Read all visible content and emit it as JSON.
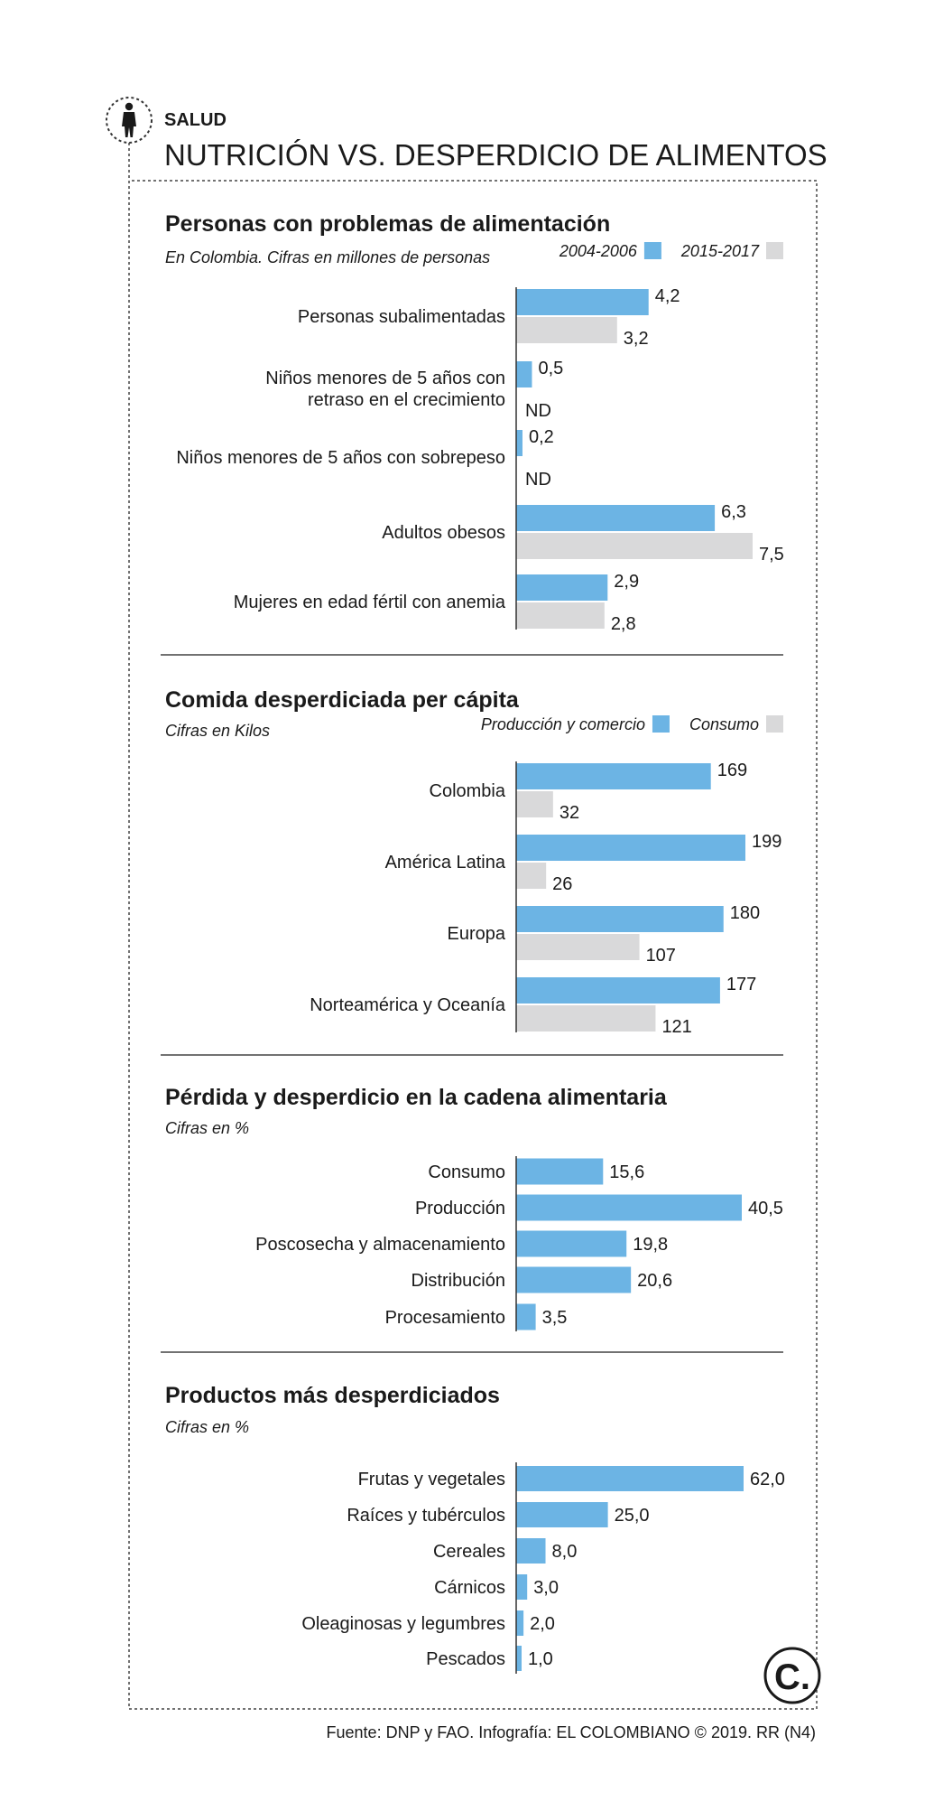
{
  "header": {
    "section": "SALUD",
    "title": "NUTRICIÓN VS. DESPERDICIO DE ALIMENTOS",
    "icon": "person-silhouette-icon"
  },
  "footer": {
    "source": "Fuente: DNP y FAO. Infografía: EL COLOMBIANO © 2019. RR (N4)",
    "logo_letter": "C."
  },
  "colors": {
    "blue": "#6cb4e4",
    "gray": "#d9d9da",
    "text": "#1a1a1a"
  },
  "chart_data": [
    {
      "type": "bar",
      "orientation": "horizontal",
      "title": "Personas con problemas de alimentación",
      "subtitle": "En Colombia. Cifras en millones de personas",
      "categories": [
        [
          "Personas subalimentadas"
        ],
        [
          "Niños menores de 5 años con",
          "retraso en el crecimiento"
        ],
        [
          "Niños menores de 5 años con sobrepeso"
        ],
        [
          "Adultos obesos"
        ],
        [
          "Mujeres en edad fértil con anemia"
        ]
      ],
      "series": [
        {
          "name": "2004-2006",
          "color": "#6cb4e4",
          "values": [
            4.2,
            0.5,
            0.2,
            6.3,
            2.9
          ],
          "labels": [
            "4,2",
            "0,5",
            "0,2",
            "6,3",
            "2,9"
          ]
        },
        {
          "name": "2015-2017",
          "color": "#d9d9da",
          "values": [
            3.2,
            null,
            null,
            7.5,
            2.8
          ],
          "labels": [
            "3,2",
            "ND",
            "ND",
            "7,5",
            "2,8"
          ]
        }
      ],
      "xlim": [
        0,
        7.5
      ]
    },
    {
      "type": "bar",
      "orientation": "horizontal",
      "title": "Comida desperdiciada per cápita",
      "subtitle": "Cifras en Kilos",
      "categories": [
        [
          "Colombia"
        ],
        [
          "América Latina"
        ],
        [
          "Europa"
        ],
        [
          "Norteamérica y Oceanía"
        ]
      ],
      "series": [
        {
          "name": "Producción y comercio",
          "color": "#6cb4e4",
          "values": [
            169,
            199,
            180,
            177
          ],
          "labels": [
            "169",
            "199",
            "180",
            "177"
          ]
        },
        {
          "name": "Consumo",
          "color": "#d9d9da",
          "values": [
            32,
            26,
            107,
            121
          ],
          "labels": [
            "32",
            "26",
            "107",
            "121"
          ]
        }
      ],
      "xlim": [
        0,
        199
      ]
    },
    {
      "type": "bar",
      "orientation": "horizontal",
      "title": "Pérdida y desperdicio en la cadena alimentaria",
      "subtitle": "Cifras en %",
      "categories": [
        [
          "Consumo"
        ],
        [
          "Producción"
        ],
        [
          "Poscosecha y almacenamiento"
        ],
        [
          "Distribución"
        ],
        [
          "Procesamiento"
        ]
      ],
      "series": [
        {
          "name": "Porcentaje",
          "color": "#6cb4e4",
          "values": [
            15.6,
            40.5,
            19.8,
            20.6,
            3.5
          ],
          "labels": [
            "15,6",
            "40,5",
            "19,8",
            "20,6",
            "3,5"
          ]
        }
      ],
      "xlim": [
        0,
        40.5
      ]
    },
    {
      "type": "bar",
      "orientation": "horizontal",
      "title": "Productos más desperdiciados",
      "subtitle": "Cifras en %",
      "categories": [
        [
          "Frutas y vegetales"
        ],
        [
          "Raíces y tubérculos"
        ],
        [
          "Cereales"
        ],
        [
          "Cárnicos"
        ],
        [
          "Oleaginosas y legumbres"
        ],
        [
          "Pescados"
        ]
      ],
      "series": [
        {
          "name": "Porcentaje",
          "color": "#6cb4e4",
          "values": [
            62.0,
            25.0,
            8.0,
            3.0,
            2.0,
            1.0
          ],
          "labels": [
            "62,0",
            "25,0",
            "8,0",
            "3,0",
            "2,0",
            "1,0"
          ]
        }
      ],
      "xlim": [
        0,
        62
      ]
    }
  ]
}
